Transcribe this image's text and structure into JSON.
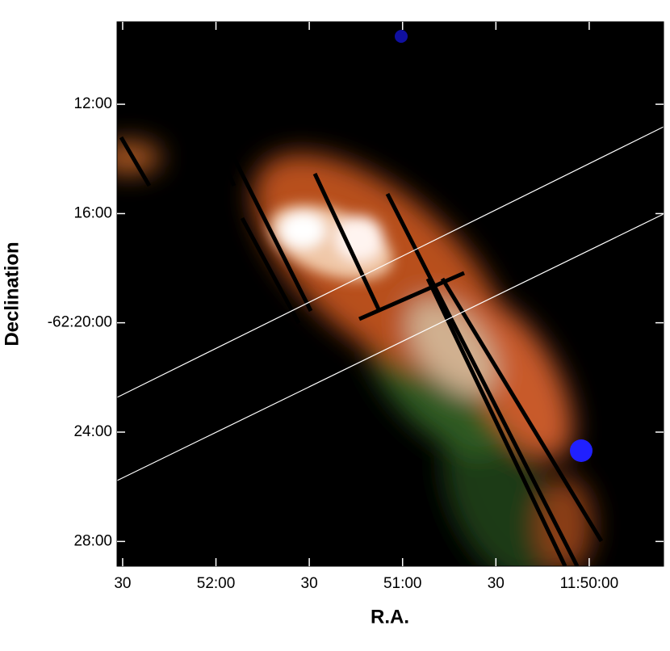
{
  "chart_data": {
    "type": "image",
    "x_label": "R.A.",
    "y_label": "Declination",
    "xlim": [
      151.8,
      -23.9
    ],
    "xticks": [
      {
        "value": 150,
        "label": "30"
      },
      {
        "value": 120,
        "label": "52:00"
      },
      {
        "value": 90,
        "label": "30"
      },
      {
        "value": 60,
        "label": "51:00"
      },
      {
        "value": 30,
        "label": "30"
      },
      {
        "value": 0,
        "label": "11:50:00"
      }
    ],
    "ylim": [
      -62.1497,
      -62.4818
    ],
    "yticks": [
      {
        "value": -62.2,
        "label": "12:00"
      },
      {
        "value": -62.2667,
        "label": "16:00"
      },
      {
        "value": -62.3333,
        "label": "-62:20:00"
      },
      {
        "value": -62.4,
        "label": "24:00"
      },
      {
        "value": -62.4667,
        "label": "28:00"
      }
    ]
  }
}
